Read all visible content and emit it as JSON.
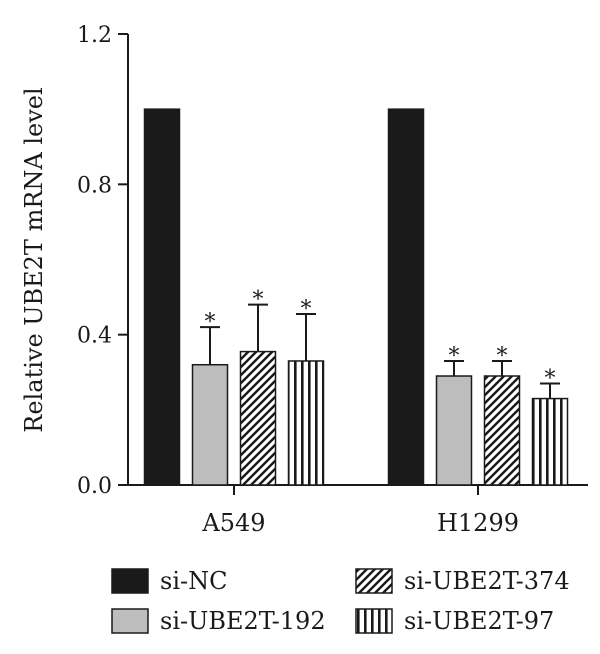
{
  "chart_data": {
    "type": "bar",
    "ylabel": "Relative UBE2T mRNA level",
    "xlabel": "",
    "ylim": [
      0,
      1.2
    ],
    "yticks": [
      "0.0",
      "0.4",
      "0.8",
      "1.2"
    ],
    "categories": [
      "A549",
      "H1299"
    ],
    "legend_position": "bottom",
    "significance_marker": "*",
    "series": [
      {
        "name": "si-NC",
        "pattern": "solid",
        "color": "#1a1a1a",
        "values": [
          1.0,
          1.0
        ],
        "errors": [
          0,
          0
        ],
        "significant": [
          false,
          false
        ]
      },
      {
        "name": "si-UBE2T-192",
        "pattern": "solid",
        "color": "#bdbdbd",
        "values": [
          0.32,
          0.29
        ],
        "errors": [
          0.1,
          0.04
        ],
        "significant": [
          true,
          true
        ]
      },
      {
        "name": "si-UBE2T-374",
        "pattern": "diagonal-hatch",
        "color": "#1a1a1a",
        "values": [
          0.355,
          0.29
        ],
        "errors": [
          0.125,
          0.04
        ],
        "significant": [
          true,
          true
        ]
      },
      {
        "name": "si-UBE2T-97",
        "pattern": "vertical-stripes",
        "color": "#1a1a1a",
        "values": [
          0.33,
          0.23
        ],
        "errors": [
          0.125,
          0.04
        ],
        "significant": [
          true,
          true
        ]
      }
    ]
  }
}
